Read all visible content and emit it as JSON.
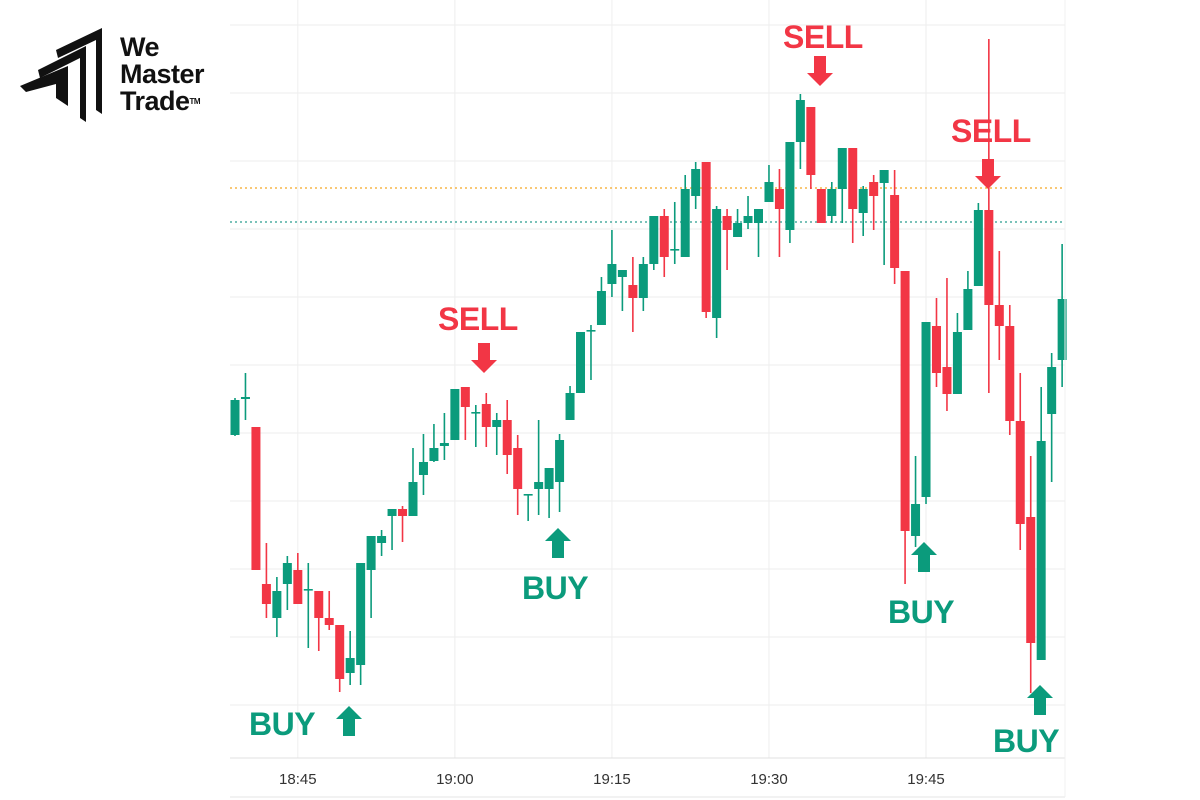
{
  "brand": {
    "line1": "We",
    "line2": "Master",
    "line3": "Trade",
    "tm": "TM"
  },
  "colors": {
    "up": "#0b9b7c",
    "down": "#f23645",
    "level_orange": "#f5a623",
    "level_green": "#2a9d8f",
    "grid": "#eeeeee"
  },
  "signals": [
    {
      "type": "BUY",
      "label": "BUY",
      "candle": 11
    },
    {
      "type": "SELL",
      "label": "SELL",
      "candle": 24
    },
    {
      "type": "BUY",
      "label": "BUY",
      "candle": 31
    },
    {
      "type": "SELL",
      "label": "SELL",
      "candle": 56
    },
    {
      "type": "BUY",
      "label": "BUY",
      "candle": 66
    },
    {
      "type": "SELL",
      "label": "SELL",
      "candle": 72
    },
    {
      "type": "BUY",
      "label": "BUY",
      "candle": 77
    }
  ],
  "chart_data": {
    "type": "candlestick",
    "interval": "1m",
    "first_candle_time": "18:39",
    "x_tick_labels": [
      "18:45",
      "19:00",
      "19:15",
      "19:30",
      "19:45"
    ],
    "grid": true,
    "y_axis_labels_shown": false,
    "horizontal_levels": [
      {
        "style": "dotted",
        "color": "#f5a623",
        "value": 57.2
      },
      {
        "style": "dotted",
        "color": "#2a9d8f",
        "value": 53.8
      }
    ],
    "ohlc": [
      [
        32.5,
        36.2,
        32.4,
        36.0
      ],
      [
        36.1,
        38.7,
        34.0,
        36.3
      ],
      [
        33.3,
        33.3,
        19.0,
        19.0
      ],
      [
        17.6,
        21.7,
        14.2,
        15.6
      ],
      [
        14.2,
        18.3,
        12.3,
        16.9
      ],
      [
        17.6,
        20.4,
        15.0,
        19.7
      ],
      [
        19.0,
        20.7,
        15.6,
        15.6
      ],
      [
        17.0,
        19.7,
        11.2,
        17.1
      ],
      [
        16.9,
        16.9,
        10.9,
        14.2
      ],
      [
        14.2,
        16.9,
        13.0,
        13.5
      ],
      [
        13.5,
        13.5,
        6.8,
        8.1
      ],
      [
        8.7,
        12.9,
        7.5,
        10.2
      ],
      [
        9.5,
        19.7,
        7.5,
        19.7
      ],
      [
        19.0,
        22.4,
        14.2,
        22.4
      ],
      [
        21.7,
        23.0,
        20.4,
        22.4
      ],
      [
        24.4,
        25.1,
        21.0,
        25.1
      ],
      [
        25.1,
        25.4,
        21.8,
        24.4
      ],
      [
        24.4,
        31.2,
        24.4,
        27.8
      ],
      [
        28.5,
        32.6,
        26.5,
        29.8
      ],
      [
        29.9,
        33.6,
        29.8,
        31.2
      ],
      [
        31.4,
        34.7,
        30.0,
        31.7
      ],
      [
        32.0,
        37.1,
        32.0,
        37.1
      ],
      [
        37.3,
        37.3,
        32.0,
        35.3
      ],
      [
        34.7,
        35.5,
        31.3,
        34.8
      ],
      [
        35.6,
        36.7,
        31.3,
        33.3
      ],
      [
        33.3,
        34.7,
        30.5,
        34.0
      ],
      [
        34.0,
        36.0,
        28.6,
        30.5
      ],
      [
        31.2,
        32.5,
        24.5,
        27.1
      ],
      [
        26.5,
        26.5,
        23.9,
        26.6
      ],
      [
        27.1,
        34.0,
        24.5,
        27.8
      ],
      [
        27.1,
        29.2,
        24.2,
        29.2
      ],
      [
        27.8,
        32.6,
        24.8,
        32.0
      ],
      [
        34.0,
        37.4,
        34.0,
        36.7
      ],
      [
        36.7,
        42.8,
        36.7,
        42.8
      ],
      [
        42.9,
        43.5,
        38.0,
        43.0
      ],
      [
        43.5,
        48.3,
        43.5,
        46.9
      ],
      [
        47.6,
        53.0,
        46.3,
        49.6
      ],
      [
        48.3,
        49.0,
        44.9,
        49.0
      ],
      [
        47.5,
        50.3,
        42.8,
        46.2
      ],
      [
        46.2,
        50.3,
        44.9,
        49.6
      ],
      [
        49.6,
        54.4,
        49.0,
        54.4
      ],
      [
        54.4,
        55.1,
        48.3,
        50.3
      ],
      [
        51.0,
        55.8,
        49.6,
        51.1
      ],
      [
        50.3,
        58.5,
        50.3,
        57.1
      ],
      [
        56.4,
        59.8,
        55.1,
        59.1
      ],
      [
        59.8,
        59.8,
        44.2,
        44.8
      ],
      [
        44.2,
        55.4,
        42.2,
        55.1
      ],
      [
        54.4,
        55.1,
        49.0,
        53.0
      ],
      [
        52.3,
        55.1,
        52.3,
        53.7
      ],
      [
        53.7,
        56.4,
        53.1,
        54.4
      ],
      [
        53.7,
        55.1,
        50.3,
        55.1
      ],
      [
        55.8,
        59.5,
        55.8,
        57.8
      ],
      [
        57.1,
        59.1,
        50.3,
        55.1
      ],
      [
        53.0,
        61.8,
        51.7,
        61.8
      ],
      [
        61.8,
        66.6,
        59.1,
        66.0
      ],
      [
        65.3,
        65.3,
        57.1,
        58.5
      ],
      [
        57.1,
        57.1,
        53.7,
        53.7
      ],
      [
        54.4,
        57.8,
        53.7,
        57.1
      ],
      [
        57.1,
        61.2,
        53.7,
        61.2
      ],
      [
        61.2,
        61.2,
        51.7,
        55.1
      ],
      [
        54.7,
        57.4,
        52.4,
        57.1
      ],
      [
        57.8,
        58.5,
        53.0,
        56.4
      ],
      [
        57.7,
        59.0,
        49.5,
        59.0
      ],
      [
        56.5,
        59.0,
        47.6,
        49.2
      ],
      [
        48.9,
        48.9,
        17.6,
        22.9
      ],
      [
        22.4,
        30.4,
        21.3,
        25.6
      ],
      [
        26.3,
        43.8,
        25.6,
        43.8
      ],
      [
        43.4,
        46.2,
        37.3,
        38.7
      ],
      [
        39.3,
        48.2,
        34.9,
        36.6
      ],
      [
        36.6,
        44.7,
        36.6,
        42.8
      ],
      [
        43.0,
        48.9,
        43.0,
        47.1
      ],
      [
        47.4,
        55.7,
        47.4,
        55.0
      ],
      [
        55.0,
        72.1,
        36.7,
        45.5
      ],
      [
        45.5,
        50.9,
        40.0,
        43.4
      ],
      [
        43.4,
        45.5,
        32.5,
        33.9
      ],
      [
        33.9,
        38.7,
        21.0,
        23.6
      ],
      [
        24.3,
        30.4,
        6.7,
        11.7
      ],
      [
        10.0,
        37.3,
        10.0,
        31.9
      ],
      [
        34.6,
        40.7,
        27.8,
        39.3
      ],
      [
        40.0,
        51.6,
        37.3,
        46.1
      ]
    ]
  }
}
